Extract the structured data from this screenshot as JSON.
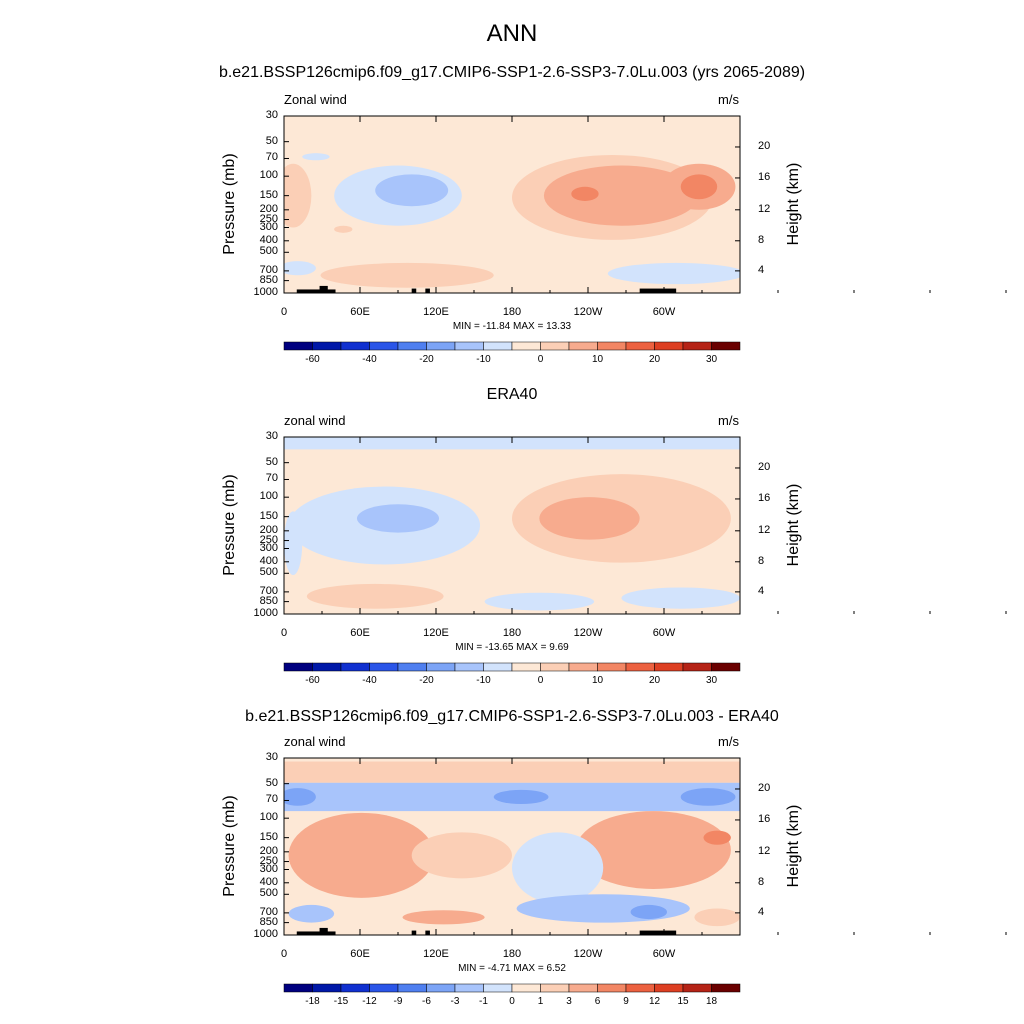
{
  "page": {
    "title": "ANN"
  },
  "colors": {
    "blue_scale": [
      "#00007f",
      "#0018a8",
      "#1030d0",
      "#2a55e8",
      "#4f7ff0",
      "#7ca4f6",
      "#a8c4fb",
      "#d2e3fc"
    ],
    "red_scale": [
      "#fde8d6",
      "#fbcfb6",
      "#f7ab8e",
      "#f28664",
      "#ec6140",
      "#dd3f22",
      "#b52316",
      "#8a0f0d",
      "#6a0000"
    ],
    "topography": "#000000"
  },
  "chart_data": [
    {
      "type": "heatmap",
      "title": "b.e21.BSSP126cmip6.f09_g17.CMIP6-SSP1-2.6-SSP3-7.0Lu.003 (yrs 2065-2089)",
      "variable_label": "Zonal wind",
      "units": "m/s",
      "ylabel": "Pressure (mb)",
      "ylabel_right": "Height (km)",
      "x_ticks": [
        "0",
        "60E",
        "120E",
        "180",
        "120W",
        "60W"
      ],
      "y_ticks": [
        "30",
        "50",
        "70",
        "100",
        "150",
        "200",
        "250",
        "300",
        "400",
        "500",
        "700",
        "850",
        "1000"
      ],
      "right_ticks": [
        "20",
        "16",
        "12",
        "8",
        "4"
      ],
      "min_max": "MIN = -11.84  MAX =  13.33",
      "colorbar_ticks": [
        "-60",
        "-40",
        "-20",
        "-10",
        "0",
        "10",
        "20",
        "30"
      ],
      "min": -11.84,
      "max": 13.33
    },
    {
      "type": "heatmap",
      "title": "ERA40",
      "variable_label": "zonal wind",
      "units": "m/s",
      "ylabel": "Pressure (mb)",
      "ylabel_right": "Height (km)",
      "x_ticks": [
        "0",
        "60E",
        "120E",
        "180",
        "120W",
        "60W"
      ],
      "y_ticks": [
        "30",
        "50",
        "70",
        "100",
        "150",
        "200",
        "250",
        "300",
        "400",
        "500",
        "700",
        "850",
        "1000"
      ],
      "right_ticks": [
        "20",
        "16",
        "12",
        "8",
        "4"
      ],
      "min_max": "MIN = -13.65  MAX =   9.69",
      "colorbar_ticks": [
        "-60",
        "-40",
        "-20",
        "-10",
        "0",
        "10",
        "20",
        "30"
      ],
      "min": -13.65,
      "max": 9.69
    },
    {
      "type": "heatmap",
      "title": "b.e21.BSSP126cmip6.f09_g17.CMIP6-SSP1-2.6-SSP3-7.0Lu.003 - ERA40",
      "variable_label": "zonal wind",
      "units": "m/s",
      "ylabel": "Pressure (mb)",
      "ylabel_right": "Height (km)",
      "x_ticks": [
        "0",
        "60E",
        "120E",
        "180",
        "120W",
        "60W"
      ],
      "y_ticks": [
        "30",
        "50",
        "70",
        "100",
        "150",
        "200",
        "250",
        "300",
        "400",
        "500",
        "700",
        "850",
        "1000"
      ],
      "right_ticks": [
        "20",
        "16",
        "12",
        "8",
        "4"
      ],
      "min_max": "MIN =  -4.71  MAX =   6.52",
      "colorbar_ticks": [
        "-18",
        "-15",
        "-12",
        "-9",
        "-6",
        "-3",
        "-1",
        "0",
        "1",
        "3",
        "6",
        "9",
        "12",
        "15",
        "18"
      ],
      "min": -4.71,
      "max": 6.52
    }
  ]
}
